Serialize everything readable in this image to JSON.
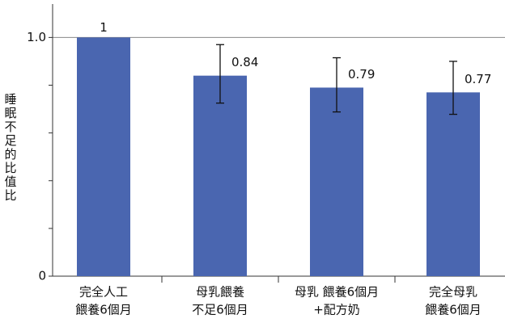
{
  "chart_data": {
    "type": "bar",
    "y_label": "睡眠不足的比值比",
    "categories": [
      [
        "完全人工",
        "餵養6個月"
      ],
      [
        "母乳餵養",
        "不足6個月"
      ],
      [
        "母乳 餵養6個月",
        "+配方奶"
      ],
      [
        "完全母乳",
        "餵養6個月"
      ]
    ],
    "values": [
      1,
      0.84,
      0.79,
      0.77
    ],
    "error_low": [
      null,
      0.725,
      0.688,
      0.678
    ],
    "error_high": [
      null,
      0.97,
      0.915,
      0.9
    ],
    "color": "#4a66b0",
    "ylim": [
      0,
      1.14
    ],
    "yticks": [
      0,
      {
        "value": 1,
        "label": "1.0"
      }
    ],
    "minor_yticks": [
      0.2,
      0.4,
      0.6,
      0.8
    ],
    "grid": true
  }
}
